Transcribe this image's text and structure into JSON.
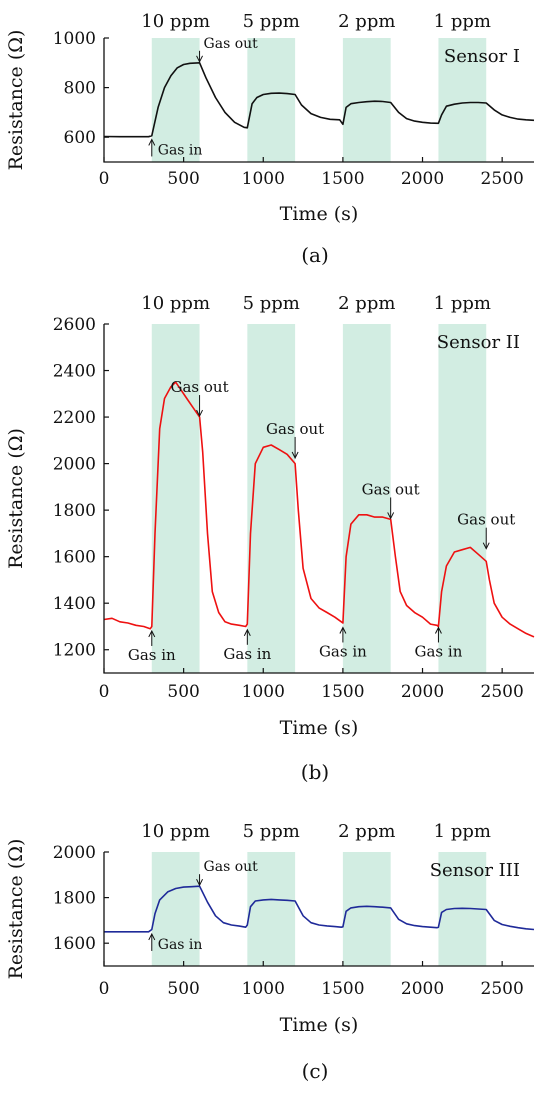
{
  "chart_data": [
    {
      "type": "line",
      "caption": "(a)",
      "sensor_label": "Sensor I",
      "xlabel": "Time (s)",
      "ylabel": "Resistance (Ω)",
      "xlim": [
        0,
        2700
      ],
      "ylim": [
        500,
        1000
      ],
      "xticks": [
        "0",
        "500",
        "1000",
        "1500",
        "2000",
        "2500"
      ],
      "yticks": [
        "600",
        "800",
        "1000"
      ],
      "line_color": "#111111",
      "band_color": "#d2ede2",
      "gas_windows": [
        {
          "label": "10 ppm",
          "start": 300,
          "end": 600
        },
        {
          "label": "5 ppm",
          "start": 900,
          "end": 1200
        },
        {
          "label": "2 ppm",
          "start": 1500,
          "end": 1800
        },
        {
          "label": "1 ppm",
          "start": 2100,
          "end": 2400
        }
      ],
      "annotations": [
        {
          "text": "Gas out",
          "x": 600,
          "y": 900,
          "dir": "down"
        },
        {
          "text": "Gas in",
          "x": 300,
          "y": 595,
          "dir": "up"
        }
      ],
      "series": [
        {
          "x": [
            0,
            100,
            200,
            280,
            300,
            340,
            380,
            420,
            460,
            500,
            540,
            600,
            640,
            700,
            760,
            820,
            880,
            900,
            930,
            960,
            1000,
            1050,
            1100,
            1150,
            1200,
            1240,
            1300,
            1360,
            1420,
            1480,
            1500,
            1520,
            1550,
            1600,
            1650,
            1700,
            1750,
            1800,
            1850,
            1900,
            1950,
            2000,
            2050,
            2100,
            2120,
            2150,
            2200,
            2250,
            2300,
            2350,
            2400,
            2450,
            2500,
            2550,
            2600,
            2650,
            2700
          ],
          "y": [
            603,
            602,
            602,
            602,
            606,
            720,
            800,
            848,
            880,
            893,
            898,
            900,
            840,
            760,
            700,
            660,
            640,
            638,
            735,
            760,
            772,
            777,
            778,
            776,
            772,
            730,
            695,
            680,
            672,
            670,
            652,
            720,
            735,
            740,
            743,
            745,
            744,
            740,
            700,
            675,
            665,
            660,
            657,
            656,
            690,
            725,
            733,
            738,
            740,
            740,
            738,
            710,
            690,
            680,
            673,
            670,
            668
          ]
        }
      ]
    },
    {
      "type": "line",
      "caption": "(b)",
      "sensor_label": "Sensor II",
      "xlabel": "Time (s)",
      "ylabel": "Resistance (Ω)",
      "xlim": [
        0,
        2700
      ],
      "ylim": [
        1100,
        2600
      ],
      "xticks": [
        "0",
        "500",
        "1000",
        "1500",
        "2000",
        "2500"
      ],
      "yticks": [
        "1200",
        "1400",
        "1600",
        "1800",
        "2000",
        "2200",
        "2400",
        "2600"
      ],
      "line_color": "#ee1111",
      "band_color": "#d2ede2",
      "gas_windows": [
        {
          "label": "10 ppm",
          "start": 300,
          "end": 600
        },
        {
          "label": "5 ppm",
          "start": 900,
          "end": 1200
        },
        {
          "label": "2 ppm",
          "start": 1500,
          "end": 1800
        },
        {
          "label": "1 ppm",
          "start": 2100,
          "end": 2400
        }
      ],
      "annotations": [
        {
          "text": "Gas out",
          "x": 600,
          "y": 2200,
          "dir": "down"
        },
        {
          "text": "Gas out",
          "x": 1200,
          "y": 2020,
          "dir": "down"
        },
        {
          "text": "Gas out",
          "x": 1800,
          "y": 1760,
          "dir": "down"
        },
        {
          "text": "Gas out",
          "x": 2400,
          "y": 1630,
          "dir": "down"
        },
        {
          "text": "Gas in",
          "x": 300,
          "y": 1285,
          "dir": "up"
        },
        {
          "text": "Gas in",
          "x": 900,
          "y": 1290,
          "dir": "up"
        },
        {
          "text": "Gas in",
          "x": 1500,
          "y": 1300,
          "dir": "up"
        },
        {
          "text": "Gas in",
          "x": 2100,
          "y": 1300,
          "dir": "up"
        }
      ],
      "series": [
        {
          "x": [
            0,
            50,
            100,
            150,
            200,
            250,
            290,
            300,
            320,
            350,
            380,
            420,
            450,
            480,
            520,
            560,
            600,
            620,
            650,
            680,
            720,
            760,
            800,
            850,
            890,
            900,
            920,
            950,
            1000,
            1050,
            1100,
            1150,
            1200,
            1220,
            1250,
            1300,
            1350,
            1400,
            1450,
            1490,
            1500,
            1520,
            1550,
            1600,
            1650,
            1700,
            1750,
            1800,
            1830,
            1860,
            1900,
            1950,
            2000,
            2050,
            2090,
            2100,
            2120,
            2150,
            2200,
            2250,
            2300,
            2350,
            2400,
            2420,
            2450,
            2500,
            2550,
            2600,
            2650,
            2700
          ],
          "y": [
            1330,
            1335,
            1320,
            1315,
            1305,
            1300,
            1290,
            1300,
            1700,
            2150,
            2280,
            2330,
            2350,
            2320,
            2280,
            2240,
            2200,
            2050,
            1700,
            1450,
            1360,
            1320,
            1310,
            1305,
            1300,
            1310,
            1700,
            2000,
            2070,
            2080,
            2060,
            2040,
            2000,
            1800,
            1550,
            1420,
            1380,
            1360,
            1340,
            1320,
            1315,
            1600,
            1740,
            1780,
            1780,
            1770,
            1770,
            1760,
            1600,
            1450,
            1390,
            1360,
            1340,
            1310,
            1305,
            1300,
            1450,
            1560,
            1620,
            1630,
            1640,
            1610,
            1580,
            1500,
            1400,
            1340,
            1310,
            1290,
            1270,
            1255
          ]
        }
      ]
    },
    {
      "type": "line",
      "caption": "(c)",
      "sensor_label": "Sensor III",
      "xlabel": "Time (s)",
      "ylabel": "Resistance (Ω)",
      "xlim": [
        0,
        2700
      ],
      "ylim": [
        1500,
        2000
      ],
      "xticks": [
        "0",
        "500",
        "1000",
        "1500",
        "2000",
        "2500"
      ],
      "yticks": [
        "1600",
        "1800",
        "2000"
      ],
      "line_color": "#1f2a99",
      "band_color": "#d2ede2",
      "gas_windows": [
        {
          "label": "10 ppm",
          "start": 300,
          "end": 600
        },
        {
          "label": "5 ppm",
          "start": 900,
          "end": 1200
        },
        {
          "label": "2 ppm",
          "start": 1500,
          "end": 1800
        },
        {
          "label": "1 ppm",
          "start": 2100,
          "end": 2400
        }
      ],
      "annotations": [
        {
          "text": "Gas out",
          "x": 600,
          "y": 1850,
          "dir": "down"
        },
        {
          "text": "Gas in",
          "x": 300,
          "y": 1645,
          "dir": "up"
        }
      ],
      "series": [
        {
          "x": [
            0,
            100,
            200,
            280,
            300,
            320,
            350,
            400,
            450,
            500,
            550,
            600,
            650,
            700,
            750,
            800,
            850,
            890,
            900,
            920,
            950,
            1000,
            1050,
            1100,
            1150,
            1200,
            1250,
            1300,
            1350,
            1400,
            1450,
            1490,
            1500,
            1520,
            1550,
            1600,
            1650,
            1700,
            1750,
            1800,
            1850,
            1900,
            1950,
            2000,
            2050,
            2090,
            2100,
            2120,
            2150,
            2200,
            2250,
            2300,
            2350,
            2400,
            2450,
            2500,
            2550,
            2600,
            2650,
            2700
          ],
          "y": [
            1650,
            1650,
            1650,
            1650,
            1660,
            1730,
            1790,
            1825,
            1840,
            1846,
            1848,
            1850,
            1780,
            1720,
            1690,
            1680,
            1675,
            1670,
            1680,
            1760,
            1785,
            1790,
            1792,
            1790,
            1788,
            1785,
            1720,
            1690,
            1680,
            1676,
            1673,
            1670,
            1672,
            1740,
            1755,
            1760,
            1762,
            1760,
            1758,
            1755,
            1705,
            1685,
            1677,
            1673,
            1670,
            1668,
            1670,
            1735,
            1748,
            1752,
            1753,
            1752,
            1750,
            1748,
            1700,
            1682,
            1674,
            1668,
            1663,
            1660
          ]
        }
      ]
    }
  ]
}
